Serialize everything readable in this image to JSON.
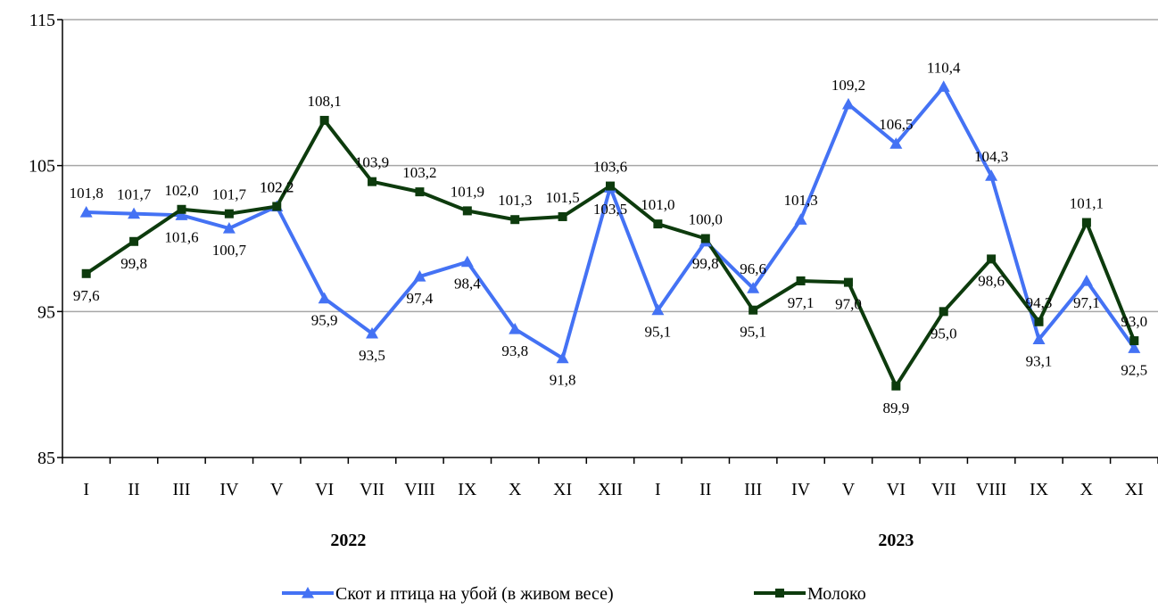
{
  "chart_data": {
    "type": "line",
    "categories": [
      "I",
      "II",
      "III",
      "IV",
      "V",
      "VI",
      "VII",
      "VIII",
      "IX",
      "X",
      "XI",
      "XII",
      "I",
      "II",
      "III",
      "IV",
      "V",
      "VI",
      "VII",
      "VIII",
      "IX",
      "X",
      "XI"
    ],
    "year_labels": [
      {
        "label": "2022",
        "from_index": 0,
        "to_index": 11
      },
      {
        "label": "2023",
        "from_index": 12,
        "to_index": 22
      }
    ],
    "ylim": [
      85,
      115
    ],
    "yticks": [
      85,
      95,
      105,
      115
    ],
    "grid": true,
    "legend_position": "bottom",
    "series": [
      {
        "name": "Скот и птица на убой (в живом весе)",
        "color": "#4472f4",
        "marker": "triangle",
        "values": [
          101.8,
          101.7,
          101.6,
          100.7,
          102.2,
          95.9,
          93.5,
          97.4,
          98.4,
          93.8,
          91.8,
          103.5,
          95.1,
          99.8,
          96.6,
          101.3,
          109.2,
          106.5,
          110.4,
          104.3,
          93.1,
          97.1,
          92.5
        ],
        "labels": [
          "101,8",
          "101,7",
          "101,6",
          "100,7",
          "102,2",
          "95,9",
          "93,5",
          "97,4",
          "98,4",
          "93,8",
          "91,8",
          "103,5",
          "95,1",
          "99,8",
          "96,6",
          "101,3",
          "109,2",
          "106,5",
          "110,4",
          "104,3",
          "93,1",
          "97,1",
          "92,5"
        ]
      },
      {
        "name": "Молоко",
        "color": "#0d3b0d",
        "marker": "square",
        "values": [
          97.6,
          99.8,
          102.0,
          101.7,
          102.2,
          108.1,
          103.9,
          103.2,
          101.9,
          101.3,
          101.5,
          103.6,
          101.0,
          100.0,
          95.1,
          97.1,
          97.0,
          89.9,
          95.0,
          98.6,
          94.3,
          101.1,
          93.0
        ],
        "labels": [
          "97,6",
          "99,8",
          "102,0",
          "101,7",
          "102,2",
          "108,1",
          "103,9",
          "103,2",
          "101,9",
          "101,3",
          "101,5",
          "103,6",
          "101,0",
          "100,0",
          "95,1",
          "97,1",
          "97,0",
          "89,9",
          "95,0",
          "98,6",
          "94,3",
          "101,1",
          "93,0"
        ]
      }
    ]
  }
}
